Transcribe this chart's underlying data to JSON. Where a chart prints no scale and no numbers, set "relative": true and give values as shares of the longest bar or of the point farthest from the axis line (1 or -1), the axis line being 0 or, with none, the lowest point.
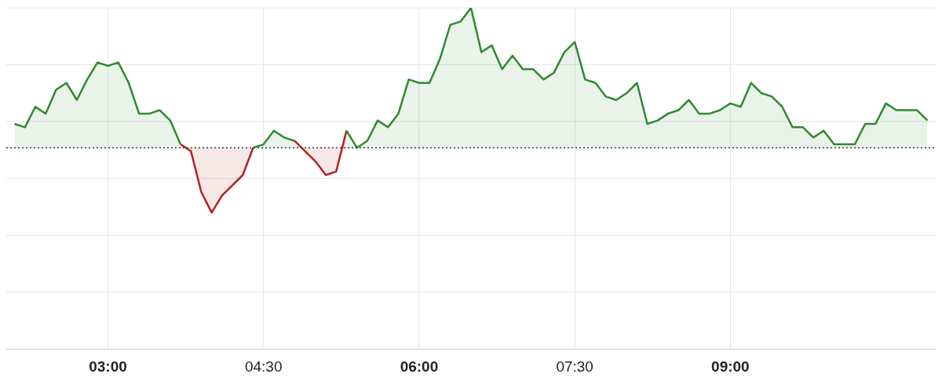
{
  "chart_data": {
    "type": "area",
    "relative": true,
    "tick_labels": "x",
    "grid": true,
    "legend": false,
    "marker": "none",
    "line_style": "solid",
    "x": [
      2.1,
      2.2,
      2.3,
      2.4,
      2.5,
      2.6,
      2.7,
      2.8,
      2.9,
      3.0,
      3.1,
      3.2,
      3.3,
      3.4,
      3.5,
      3.6,
      3.7,
      3.8,
      3.9,
      4.0,
      4.1,
      4.2,
      4.3,
      4.4,
      4.5,
      4.6,
      4.7,
      4.8,
      4.9,
      5.0,
      5.1,
      5.2,
      5.3,
      5.4,
      5.5,
      5.6,
      5.7,
      5.8,
      5.9,
      6.0,
      6.1,
      6.2,
      6.3,
      6.4,
      6.5,
      6.6,
      6.7,
      6.8,
      6.9,
      7.0,
      7.1,
      7.2,
      7.3,
      7.4,
      7.5,
      7.6,
      7.7,
      7.8,
      7.9,
      8.0,
      8.1,
      8.2,
      8.3,
      8.4,
      8.5,
      8.6,
      8.7,
      8.8,
      8.9,
      9.0,
      9.1,
      9.2,
      9.3,
      9.4,
      9.5,
      9.6,
      9.7,
      9.8,
      9.9,
      10.0,
      10.1,
      10.2,
      10.3,
      10.4,
      10.5,
      10.6,
      10.7,
      10.8,
      10.9
    ],
    "xlim": [
      2.02,
      10.98
    ],
    "xticks": [
      {
        "value": 3,
        "label": "03:00"
      },
      {
        "value": 4.5,
        "label": "04:30"
      },
      {
        "value": 6,
        "label": "06:00"
      },
      {
        "value": 7.5,
        "label": "07:30"
      },
      {
        "value": 9,
        "label": "09:00"
      }
    ],
    "series": [
      {
        "color": "#2e8b2e",
        "values": [
          0.66,
          0.65,
          0.71,
          0.69,
          0.76,
          0.78,
          0.73,
          0.79,
          0.84,
          0.83,
          0.84,
          0.78,
          0.69,
          0.69,
          0.7,
          0.67,
          0.6,
          null,
          null,
          null,
          null,
          null,
          null,
          0.59,
          0.6,
          0.64,
          0.62,
          0.61,
          null,
          null,
          null,
          null,
          0.64,
          0.59,
          0.61,
          0.67,
          0.65,
          0.69,
          0.79,
          0.78,
          0.78,
          0.85,
          0.95,
          0.96,
          1,
          0.87,
          0.89,
          0.82,
          0.86,
          0.82,
          0.82,
          0.79,
          0.81,
          0.87,
          0.9,
          0.79,
          0.78,
          0.74,
          0.73,
          0.75,
          0.78,
          0.66,
          0.67,
          0.69,
          0.7,
          0.73,
          0.69,
          0.69,
          0.7,
          0.72,
          0.71,
          0.78,
          0.75,
          0.74,
          0.71,
          0.65,
          0.65,
          0.62,
          0.64,
          0.6,
          0.6,
          0.6,
          0.66,
          0.66,
          0.72,
          0.7,
          0.7,
          0.7,
          0.67
        ]
      },
      {
        "color": "#b22222",
        "values": [
          null,
          null,
          null,
          null,
          null,
          null,
          null,
          null,
          null,
          null,
          null,
          null,
          null,
          null,
          null,
          null,
          0.6,
          0.58,
          0.46,
          0.4,
          0.45,
          0.48,
          0.51,
          0.59,
          null,
          null,
          null,
          0.61,
          0.58,
          0.55,
          0.51,
          0.52,
          0.64,
          null,
          null,
          null,
          null,
          null,
          null,
          null,
          null,
          null,
          null,
          null,
          null,
          null,
          null,
          null,
          null,
          null,
          null,
          null,
          null,
          null,
          null,
          null,
          null,
          null,
          null,
          null,
          null,
          null,
          null,
          null,
          null,
          null,
          null,
          null,
          null,
          null,
          null,
          null,
          null,
          null,
          null,
          null,
          null,
          null,
          null,
          null,
          null,
          null,
          null,
          null,
          null,
          null,
          null,
          null,
          null
        ]
      }
    ],
    "ref_lines": [
      {
        "axis": "y",
        "value": 0.59,
        "color": "#333333",
        "line_style": "dotted"
      }
    ]
  }
}
